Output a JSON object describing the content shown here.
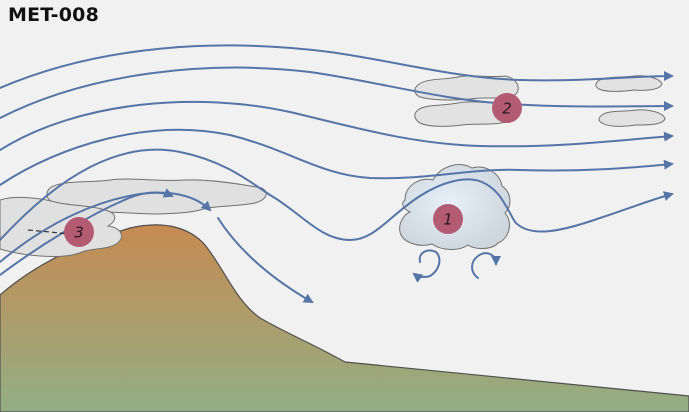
{
  "figure": {
    "code": "MET-008",
    "colors": {
      "background": "#f1f1f1",
      "airflow": "#5575a8",
      "cloud_fill": "#e2e2e2",
      "cloud_edge": "#707070",
      "cumulus_fill": "#dde9f3",
      "badge": "#b35b72",
      "mountain_top": "#c68b52",
      "mountain_base": "#93ae84"
    },
    "markers": [
      {
        "id": "cumulus-marker",
        "label": "1"
      },
      {
        "id": "cirrus-marker",
        "label": "2"
      },
      {
        "id": "cap-cloud-marker",
        "label": "3"
      }
    ],
    "icons": [
      "mountain-icon",
      "cloud-icon",
      "rotor-eddy-icon",
      "airflow-arrow-icon"
    ]
  }
}
